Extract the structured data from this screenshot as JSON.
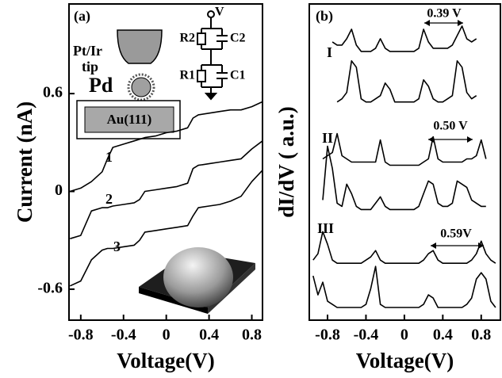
{
  "chart_data": [
    {
      "type": "line",
      "panel_label": "(a)",
      "xlabel": "Voltage(V)",
      "ylabel": "Current (nA)",
      "xlim": [
        -0.91,
        0.9
      ],
      "ylim": [
        -0.79,
        1.15
      ],
      "xticks": [
        -0.8,
        -0.4,
        0,
        0.4,
        0.8
      ],
      "yticks": [
        -0.6,
        0,
        0.6
      ],
      "x": [
        -0.9,
        -0.8,
        -0.7,
        -0.6,
        -0.55,
        -0.5,
        -0.4,
        -0.3,
        -0.25,
        -0.2,
        -0.1,
        0,
        0.1,
        0.2,
        0.25,
        0.3,
        0.4,
        0.5,
        0.6,
        0.7,
        0.8,
        0.9
      ],
      "series": [
        {
          "name": "1",
          "color": "#000000",
          "values": [
            0.0,
            0.02,
            0.06,
            0.12,
            0.2,
            0.27,
            0.29,
            0.31,
            0.32,
            0.33,
            0.34,
            0.36,
            0.37,
            0.39,
            0.45,
            0.47,
            0.48,
            0.49,
            0.5,
            0.5,
            0.52,
            0.55
          ]
        },
        {
          "name": "2",
          "color": "#000000",
          "values": [
            -0.29,
            -0.27,
            -0.12,
            -0.1,
            -0.1,
            -0.09,
            -0.08,
            -0.07,
            -0.05,
            0.0,
            0.01,
            0.02,
            0.03,
            0.05,
            0.14,
            0.16,
            0.17,
            0.18,
            0.19,
            0.2,
            0.26,
            0.31
          ]
        },
        {
          "name": "3",
          "color": "#000000",
          "values": [
            -0.58,
            -0.55,
            -0.42,
            -0.36,
            -0.35,
            -0.35,
            -0.34,
            -0.33,
            -0.3,
            -0.25,
            -0.24,
            -0.23,
            -0.22,
            -0.21,
            -0.15,
            -0.1,
            -0.09,
            -0.08,
            -0.06,
            -0.03,
            0.06,
            0.13
          ]
        }
      ],
      "inset": {
        "tip": [
          "Pt/Ir",
          "tip"
        ],
        "particle": "Pd",
        "substrate": "Au(111)",
        "circuit": {
          "source": "V",
          "r2": "R2",
          "c2": "C2",
          "r1": "R1",
          "c1": "C1"
        }
      }
    },
    {
      "type": "line",
      "panel_label": "(b)",
      "xlabel": "Voltage(V)",
      "ylabel": "dI/dV ( a.u.)",
      "xlim": [
        -0.99,
        1.0
      ],
      "ylim": [
        0,
        100
      ],
      "xticks": [
        -0.8,
        -0.4,
        0,
        0.4,
        0.8
      ],
      "x": [
        -0.95,
        -0.9,
        -0.85,
        -0.8,
        -0.75,
        -0.7,
        -0.65,
        -0.6,
        -0.55,
        -0.5,
        -0.45,
        -0.4,
        -0.35,
        -0.3,
        -0.25,
        -0.2,
        -0.15,
        -0.1,
        -0.05,
        0,
        0.05,
        0.1,
        0.15,
        0.2,
        0.25,
        0.3,
        0.35,
        0.4,
        0.45,
        0.5,
        0.55,
        0.6,
        0.65,
        0.7,
        0.75,
        0.8,
        0.85,
        0.9,
        0.95
      ],
      "series": [
        {
          "name": "I",
          "color": "#000000",
          "values": [
            null,
            null,
            null,
            null,
            88,
            87,
            87,
            89,
            92,
            87,
            85,
            85,
            85,
            86,
            89,
            86,
            85,
            85,
            85,
            85,
            85,
            85,
            86,
            92,
            88,
            86,
            86,
            86,
            86,
            87,
            90,
            93,
            89,
            88,
            89,
            null,
            null,
            null,
            null
          ]
        },
        {
          "color": "#000000",
          "values": [
            null,
            null,
            null,
            null,
            null,
            69,
            70,
            72,
            82,
            80,
            70,
            69,
            69,
            70,
            71,
            75,
            73,
            69,
            69,
            69,
            69,
            69,
            70,
            76,
            74,
            70,
            69,
            69,
            70,
            71,
            82,
            80,
            72,
            70,
            71,
            null,
            null,
            null,
            null
          ]
        },
        {
          "name": "II",
          "color": "#000000",
          "values": [
            null,
            null,
            51,
            52,
            53,
            59,
            52,
            51,
            50,
            50,
            50,
            50,
            50,
            50,
            57,
            50,
            49,
            49,
            49,
            49,
            49,
            49,
            49,
            50,
            51,
            58,
            51,
            50,
            50,
            50,
            50,
            50,
            51,
            51,
            52,
            57,
            51,
            null,
            null
          ]
        },
        {
          "color": "#000000",
          "values": [
            null,
            null,
            38,
            55,
            48,
            37,
            36,
            43,
            40,
            36,
            35,
            35,
            35,
            37,
            39,
            36,
            35,
            35,
            35,
            35,
            35,
            35,
            36,
            40,
            44,
            43,
            37,
            36,
            36,
            37,
            44,
            43,
            42,
            38,
            37,
            36,
            36,
            null,
            null
          ]
        },
        {
          "name": "III",
          "color": "#000000",
          "values": [
            19,
            21,
            28,
            24,
            19,
            18,
            18,
            18,
            18,
            18,
            18,
            19,
            20,
            22,
            19,
            18,
            18,
            18,
            18,
            18,
            18,
            18,
            18,
            19,
            21,
            22,
            19,
            18,
            18,
            18,
            18,
            18,
            18,
            19,
            21,
            25,
            21,
            19,
            18
          ]
        },
        {
          "color": "#000000",
          "values": [
            14,
            8,
            12,
            6,
            5,
            4,
            4,
            4,
            4,
            4,
            4,
            5,
            10,
            17,
            5,
            4,
            4,
            4,
            4,
            4,
            4,
            4,
            4,
            5,
            8,
            7,
            4,
            4,
            4,
            4,
            4,
            4,
            5,
            7,
            13,
            15,
            13,
            6,
            4
          ]
        }
      ],
      "annotations": [
        "0.39 V",
        "0.50 V",
        "0.59V"
      ]
    }
  ]
}
